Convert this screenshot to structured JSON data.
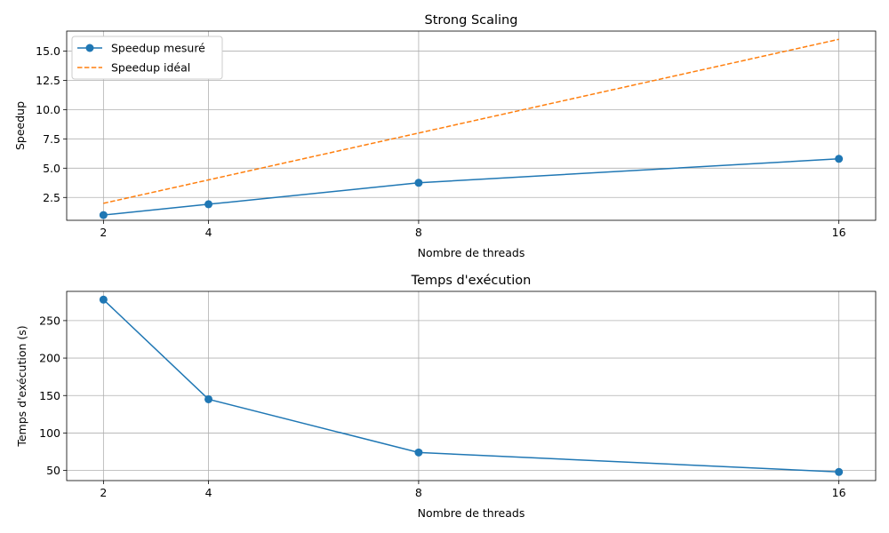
{
  "chart_data": [
    {
      "type": "line",
      "title": "Strong Scaling",
      "xlabel": "Nombre de threads",
      "ylabel": "Speedup",
      "x": [
        2,
        4,
        8,
        16
      ],
      "xticks": [
        "2",
        "4",
        "8",
        "16"
      ],
      "xlim": [
        1.3,
        16.7
      ],
      "ylim": [
        0.55,
        16.7
      ],
      "yticks": [
        "2.5",
        "5.0",
        "7.5",
        "10.0",
        "12.5",
        "15.0"
      ],
      "ytick_values": [
        2.5,
        5.0,
        7.5,
        10.0,
        12.5,
        15.0
      ],
      "grid": true,
      "legend": "top-left",
      "series": [
        {
          "name": "Speedup mesuré",
          "values": [
            1.0,
            1.92,
            3.75,
            5.8
          ],
          "color": "#1f77b4",
          "style": "solid",
          "marker": "circle"
        },
        {
          "name": "Speedup idéal",
          "values": [
            2,
            4,
            8,
            16
          ],
          "color": "#ff7f0e",
          "style": "dashed",
          "marker": "none"
        }
      ]
    },
    {
      "type": "line",
      "title": "Temps d'exécution",
      "xlabel": "Nombre de threads",
      "ylabel": "Temps d'exécution (s)",
      "x": [
        2,
        4,
        8,
        16
      ],
      "xticks": [
        "2",
        "4",
        "8",
        "16"
      ],
      "xlim": [
        1.3,
        16.7
      ],
      "ylim": [
        36.5,
        289
      ],
      "yticks": [
        "50",
        "100",
        "150",
        "200",
        "250"
      ],
      "ytick_values": [
        50,
        100,
        150,
        200,
        250
      ],
      "grid": true,
      "series": [
        {
          "name": "",
          "values": [
            278,
            145,
            74,
            48
          ],
          "color": "#1f77b4",
          "style": "solid",
          "marker": "circle"
        }
      ]
    }
  ]
}
